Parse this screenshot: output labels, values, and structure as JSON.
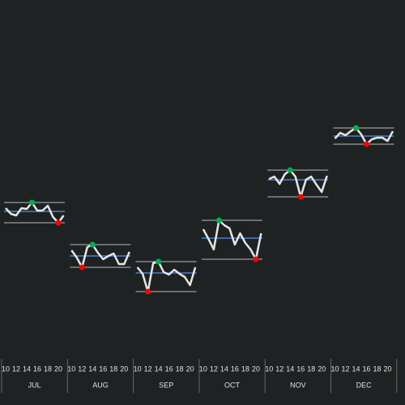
{
  "chart_data": {
    "type": "line",
    "x": [
      10,
      11,
      12,
      13,
      14,
      15,
      16,
      17,
      18,
      19,
      20,
      21
    ],
    "xticks": [
      10,
      12,
      14,
      16,
      18,
      20
    ],
    "ylim": [
      0,
      440
    ],
    "color": "#e6e6e6",
    "mean_color": "#4a7fd0",
    "max_color": "#00b050",
    "min_color": "#ff0000",
    "series": [
      {
        "name": "JUL",
        "values": [
          183,
          176,
          174,
          183,
          182,
          190,
          180,
          180,
          186,
          172,
          165,
          174
        ],
        "mean": 179
      },
      {
        "name": "AUG",
        "values": [
          131,
          122,
          110,
          135,
          138,
          128,
          120,
          124,
          127,
          114,
          114,
          129
        ],
        "mean": 124
      },
      {
        "name": "SEP",
        "values": [
          110,
          102,
          80,
          115,
          117,
          104,
          101,
          107,
          102,
          98,
          88,
          110
        ],
        "mean": 103
      },
      {
        "name": "OCT",
        "values": [
          157,
          145,
          132,
          168,
          162,
          158,
          138,
          152,
          140,
          132,
          120,
          152
        ],
        "mean": 146
      },
      {
        "name": "NOV",
        "values": [
          219,
          222,
          213,
          225,
          230,
          222,
          197,
          218,
          222,
          212,
          203,
          223
        ],
        "mean": 218
      },
      {
        "name": "DEC",
        "values": [
          269,
          276,
          273,
          278,
          282,
          274,
          262,
          268,
          270,
          270,
          266,
          278
        ],
        "mean": 272
      }
    ]
  }
}
